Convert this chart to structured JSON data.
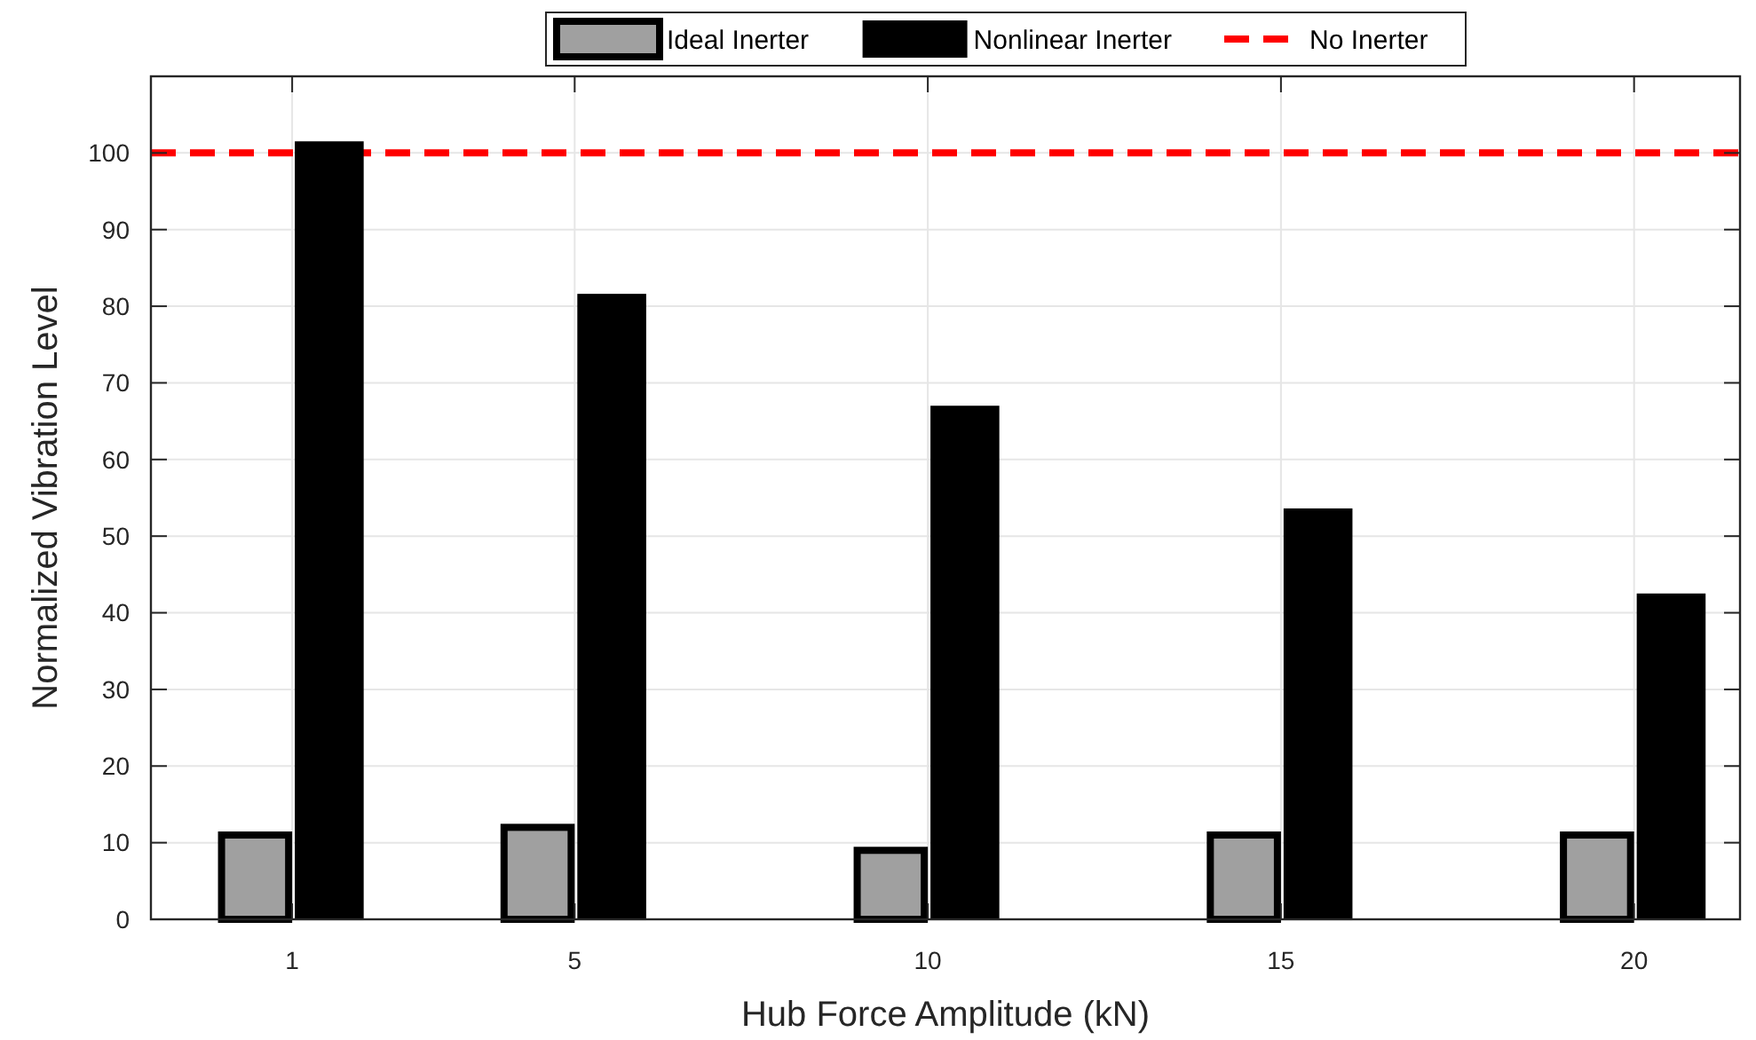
{
  "chart_data": {
    "type": "bar",
    "xlabel": "Hub Force Amplitude (kN)",
    "ylabel": "Normalized Vibration Level",
    "x": [
      1,
      5,
      10,
      15,
      20
    ],
    "series": [
      {
        "name": "Ideal Inerter",
        "color": "#a0a0a0",
        "values": [
          11,
          12,
          9,
          11,
          11
        ]
      },
      {
        "name": "Nonlinear Inerter",
        "color": "#000000",
        "values": [
          101.4,
          81.5,
          66.9,
          53.5,
          42.4
        ]
      }
    ],
    "ref_lines": [
      {
        "axis": "y",
        "value": 100,
        "label": "No Inerter",
        "color": "#ff0000",
        "line_style": "dashed"
      }
    ],
    "xlim": [
      -1,
      21.5
    ],
    "xticks": [
      1,
      5,
      10,
      15,
      20
    ],
    "ylim": [
      0,
      110
    ],
    "yticks": [
      0,
      10,
      20,
      30,
      40,
      50,
      60,
      70,
      80,
      90,
      100
    ],
    "grid": true,
    "legend": "top"
  }
}
